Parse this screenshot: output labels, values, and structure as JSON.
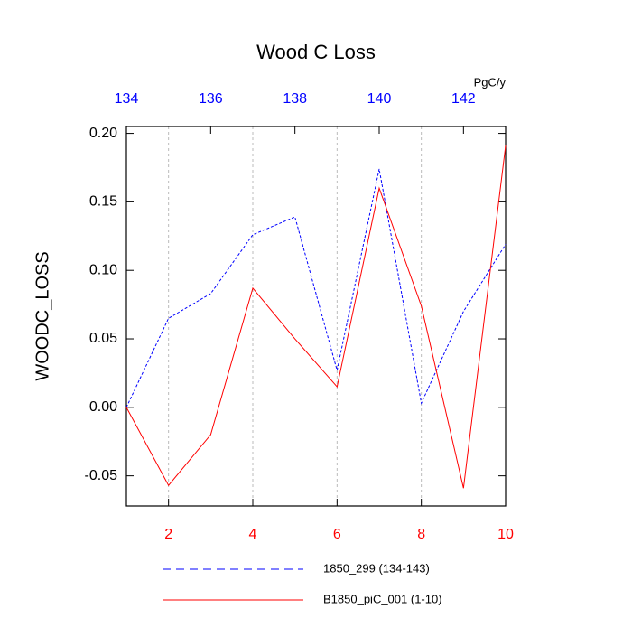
{
  "chart_data": {
    "type": "line",
    "title": "Wood C Loss",
    "ylabel": "WOODC_LOSS",
    "x2label": "PgC/y",
    "xlim": [
      1,
      10
    ],
    "xticks": [
      2,
      4,
      6,
      8,
      10
    ],
    "x2lim": [
      134,
      143
    ],
    "x2ticks": [
      134,
      136,
      138,
      140,
      142
    ],
    "ylim": [
      -0.072,
      0.205
    ],
    "yticks": [
      {
        "value": -0.05,
        "label": "-0.05"
      },
      {
        "value": 0,
        "label": "0.00"
      },
      0.05,
      {
        "value": 0.1,
        "label": "0.10"
      },
      0.15,
      {
        "value": 0.2,
        "label": "0.20"
      }
    ],
    "xtick_color": "#ff0000",
    "x2tick_color": "#0000ff",
    "grid": true,
    "series": [
      {
        "name": "1850_299 (134-143)",
        "color": "#0000ff",
        "dashed": true,
        "axis": "x2",
        "x": [
          134,
          135,
          136,
          137,
          138,
          139,
          140,
          141,
          142,
          143
        ],
        "values": [
          0.0,
          0.065,
          0.083,
          0.126,
          0.139,
          0.027,
          0.174,
          0.003,
          0.07,
          0.119
        ]
      },
      {
        "name": "B1850_piC_001 (1-10)",
        "color": "#ff0000",
        "dashed": false,
        "x": [
          1,
          2,
          3,
          4,
          5,
          6,
          7,
          8,
          9,
          10
        ],
        "values": [
          0.0,
          -0.057,
          -0.02,
          0.087,
          0.05,
          0.015,
          0.16,
          0.074,
          -0.059,
          0.191
        ]
      }
    ]
  }
}
